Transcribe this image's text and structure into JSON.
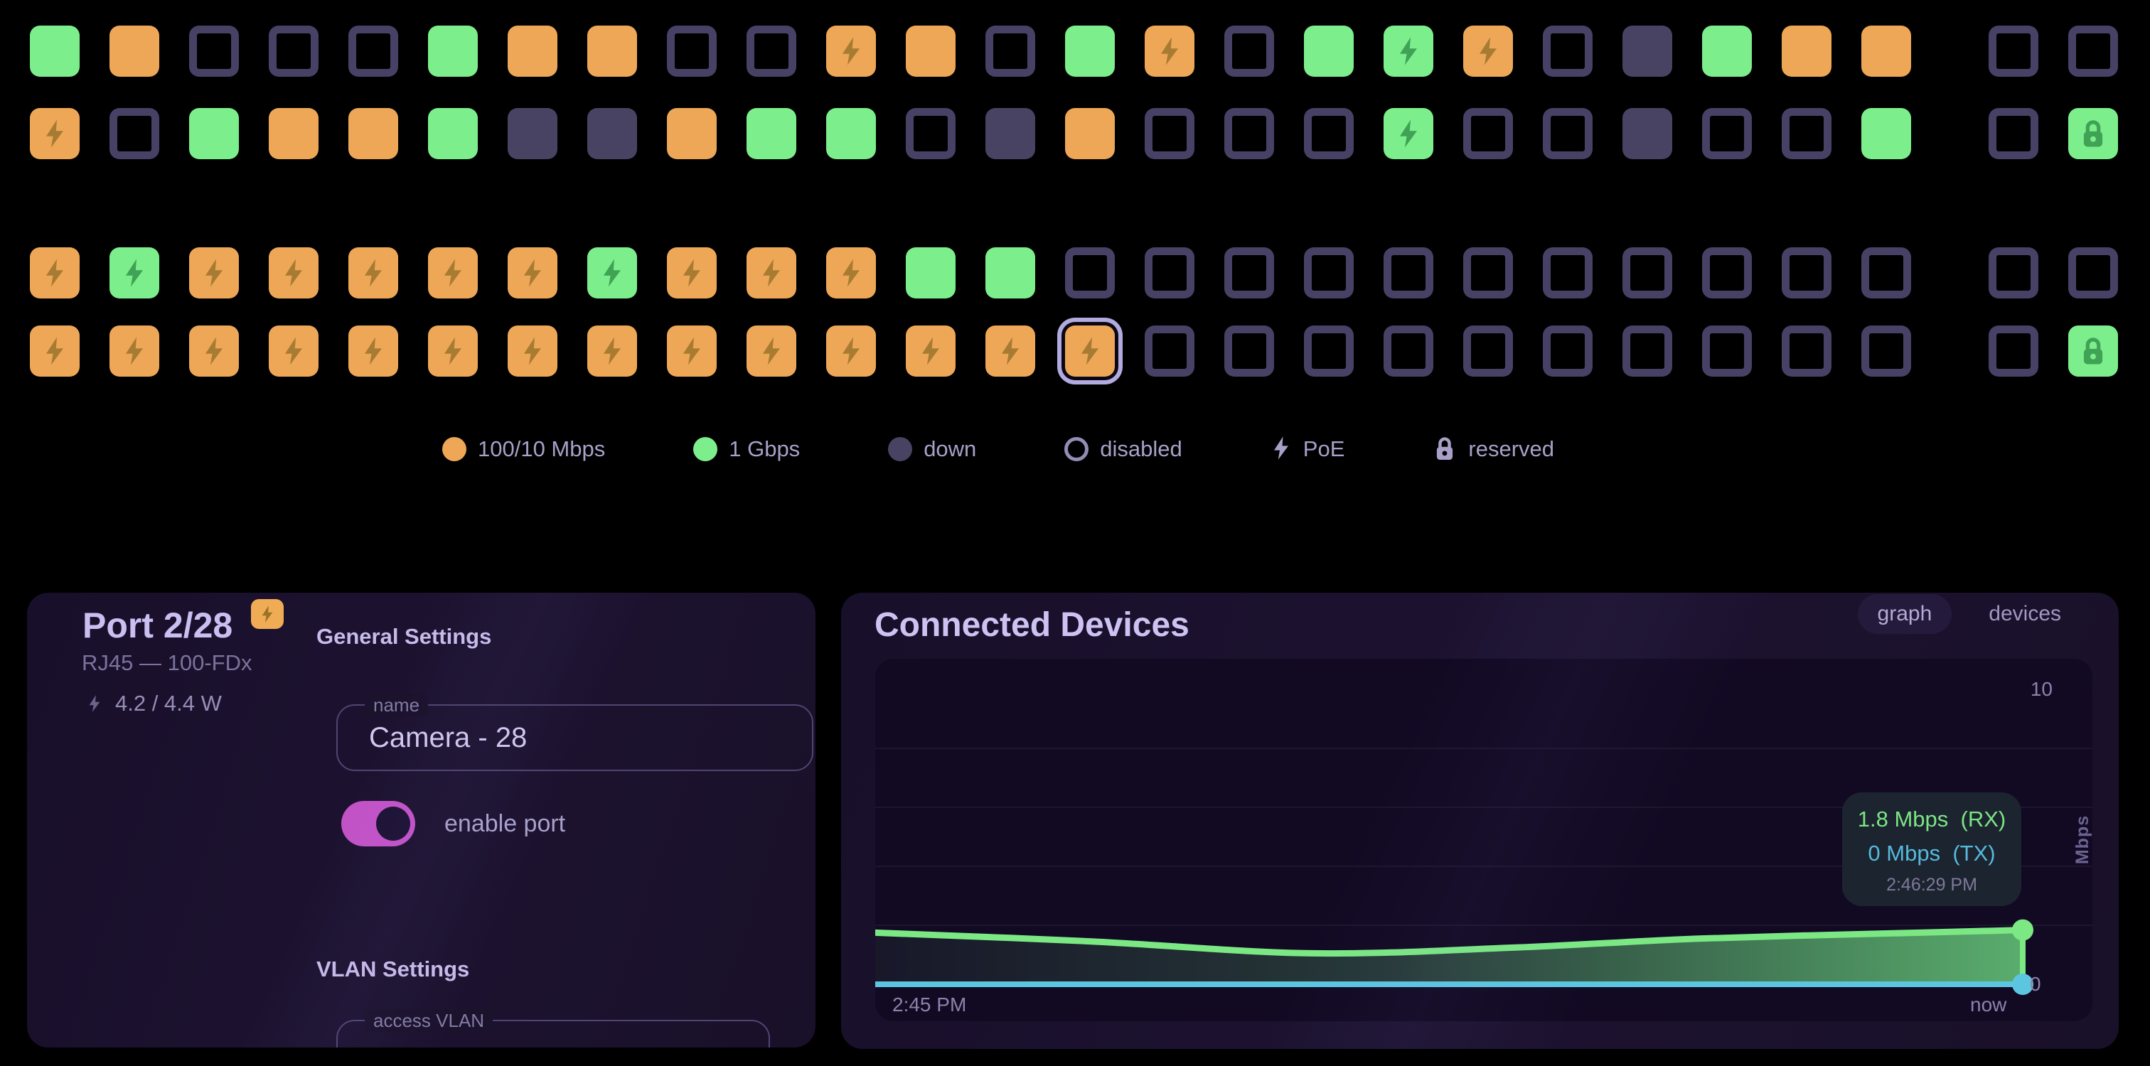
{
  "ports": {
    "status_key": {
      "o": "100/10 Mbps",
      "g": "1 Gbps",
      "d": "down",
      "x": "disabled",
      "p": "PoE",
      "l": "reserved",
      "s": "selected"
    },
    "rows": [
      [
        "g",
        "o",
        "x",
        "x",
        "x",
        "g",
        "o",
        "o",
        "x",
        "x",
        "op",
        "o",
        "x",
        "g",
        "op",
        "x",
        "g",
        "gp",
        "op",
        "x",
        "d",
        "g",
        "o",
        "o",
        "x",
        "x"
      ],
      [
        "op",
        "x",
        "g",
        "o",
        "o",
        "g",
        "d",
        "d",
        "o",
        "g",
        "g",
        "x",
        "d",
        "o",
        "x",
        "x",
        "x",
        "gp",
        "x",
        "x",
        "d",
        "x",
        "x",
        "g",
        "x",
        "gl"
      ],
      [
        "op",
        "gp",
        "op",
        "op",
        "op",
        "op",
        "op",
        "gp",
        "op",
        "op",
        "op",
        "g",
        "g",
        "x",
        "x",
        "x",
        "x",
        "x",
        "x",
        "x",
        "x",
        "x",
        "x",
        "x",
        "x",
        "x"
      ],
      [
        "op",
        "op",
        "op",
        "op",
        "op",
        "op",
        "op",
        "op",
        "op",
        "op",
        "op",
        "op",
        "op",
        "ops",
        "x",
        "x",
        "x",
        "x",
        "x",
        "x",
        "x",
        "x",
        "x",
        "x",
        "x",
        "gl"
      ]
    ]
  },
  "legend": {
    "items": [
      {
        "icon": "dot-100m-icon",
        "type": "dot-o",
        "label": "100/10 Mbps"
      },
      {
        "icon": "dot-1gbps-icon",
        "type": "dot-g",
        "label": "1 Gbps"
      },
      {
        "icon": "dot-down-icon",
        "type": "dot-d",
        "label": "down"
      },
      {
        "icon": "circle-disabled-icon",
        "type": "dot-x",
        "label": "disabled"
      },
      {
        "icon": "bolt-icon",
        "type": "bolt",
        "label": "PoE"
      },
      {
        "icon": "lock-icon",
        "type": "lock",
        "label": "reserved"
      }
    ]
  },
  "port_panel": {
    "title": "Port 2/28",
    "link_info": "RJ45 — 100-FDx",
    "power_usage": "4.2 / 4.4 W",
    "general_heading": "General Settings",
    "name_label": "name",
    "name_value": "Camera - 28",
    "enable_label": "enable port",
    "enable_state": "on",
    "vlan_heading": "VLAN Settings",
    "access_vlan_label": "access VLAN"
  },
  "devices_panel": {
    "title": "Connected Devices",
    "tab_graph": "graph",
    "tab_devices": "devices",
    "active_tab": "graph"
  },
  "chart_data": {
    "type": "area",
    "title": "Connected Devices",
    "ylabel": "Mbps",
    "ylim": [
      0,
      10
    ],
    "ymax_label": "10",
    "ymin_label": "0",
    "x_start_label": "2:45 PM",
    "x_end_label": "now",
    "gridline_values": [
      2,
      4,
      6,
      8
    ],
    "grid": "horizontal",
    "legend_position": "none",
    "series": [
      {
        "name": "RX",
        "color": "#7be884",
        "unit": "Mbps",
        "points": [
          {
            "x": 0.0,
            "y": 1.75
          },
          {
            "x": 0.19,
            "y": 1.45
          },
          {
            "x": 0.38,
            "y": 1.05
          },
          {
            "x": 0.56,
            "y": 1.25
          },
          {
            "x": 0.72,
            "y": 1.55
          },
          {
            "x": 0.91,
            "y": 1.75
          },
          {
            "x": 1.0,
            "y": 1.84
          }
        ]
      },
      {
        "name": "TX",
        "color": "#5cc6e0",
        "unit": "Mbps",
        "points": [
          {
            "x": 0.0,
            "y": 0
          },
          {
            "x": 1.0,
            "y": 0
          }
        ]
      }
    ],
    "tooltip": {
      "rx_value": "1.8 Mbps",
      "rx_series": "(RX)",
      "tx_value": "0 Mbps",
      "tx_series": "(TX)",
      "time": "2:46:29 PM"
    },
    "colors": {
      "rx": "#7be884",
      "tx": "#5cc6e0"
    }
  }
}
